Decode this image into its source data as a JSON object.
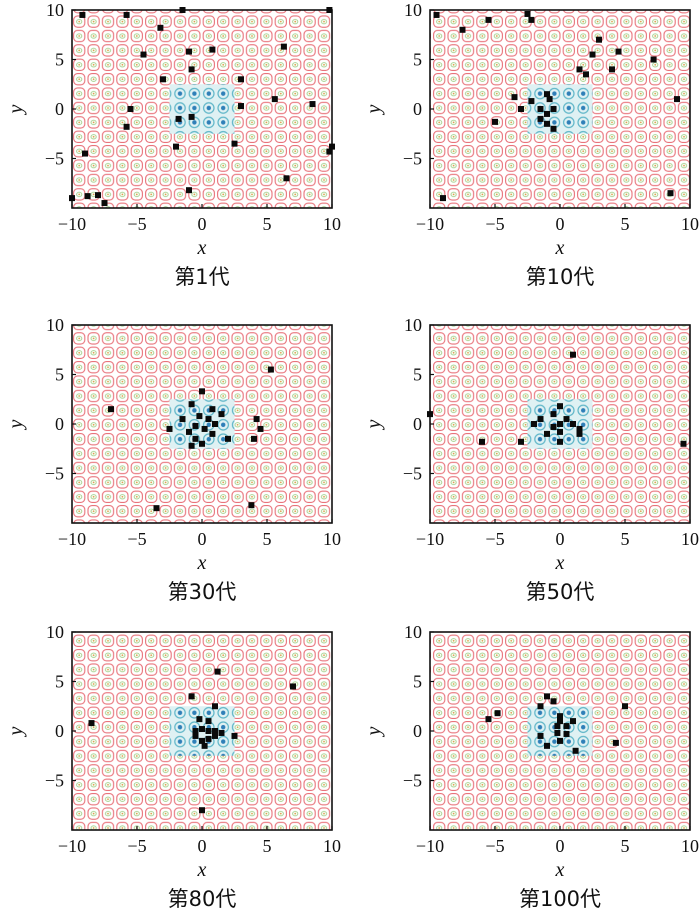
{
  "chart_data": [
    {
      "type": "scatter",
      "caption": "第1代",
      "xlabel": "x",
      "ylabel": "y",
      "xlim": [
        -10,
        10
      ],
      "ylim": [
        -10,
        10
      ],
      "xticks": [
        "−10",
        "−5",
        "0",
        "5",
        "10"
      ],
      "yticks": [
        "10",
        "5",
        "0",
        "−5"
      ],
      "background": "contour",
      "points": [
        [
          -9.2,
          9.5
        ],
        [
          -5.8,
          9.5
        ],
        [
          -3.2,
          8.2
        ],
        [
          -1.5,
          10
        ],
        [
          -4.5,
          5.5
        ],
        [
          -1,
          5.8
        ],
        [
          0.8,
          6
        ],
        [
          -0.8,
          4
        ],
        [
          -3,
          3
        ],
        [
          -1.8,
          -1
        ],
        [
          -0.8,
          -0.8
        ],
        [
          -5.5,
          0
        ],
        [
          -5.8,
          -1.8
        ],
        [
          -2,
          -3.8
        ],
        [
          2.5,
          -3.5
        ],
        [
          -9,
          -4.5
        ],
        [
          -1,
          -8.2
        ],
        [
          6.5,
          -7
        ],
        [
          9.8,
          10
        ],
        [
          6.3,
          6.3
        ],
        [
          3,
          3
        ],
        [
          3,
          0.3
        ],
        [
          5.6,
          1
        ],
        [
          8.5,
          0.5
        ],
        [
          9.8,
          -4.3
        ],
        [
          10,
          -3.8
        ],
        [
          -10,
          -9
        ],
        [
          -8.8,
          -8.8
        ],
        [
          -8,
          -8.7
        ],
        [
          -7.5,
          -9.5
        ]
      ]
    },
    {
      "type": "scatter",
      "caption": "第10代",
      "xlabel": "x",
      "ylabel": "y",
      "xlim": [
        -10,
        10
      ],
      "ylim": [
        -10,
        10
      ],
      "xticks": [
        "−10",
        "−5",
        "0",
        "5",
        "10"
      ],
      "yticks": [
        "10",
        "5",
        "0",
        "−5"
      ],
      "background": "contour",
      "points": [
        [
          -9.5,
          9.5
        ],
        [
          -7.5,
          8
        ],
        [
          -5.5,
          9
        ],
        [
          -2.5,
          9.6
        ],
        [
          -2.2,
          9
        ],
        [
          3,
          7
        ],
        [
          2.5,
          5.5
        ],
        [
          1.5,
          4
        ],
        [
          2,
          3.5
        ],
        [
          4.5,
          5.8
        ],
        [
          7.2,
          5
        ],
        [
          4,
          4
        ],
        [
          -2.2,
          0.8
        ],
        [
          -3.5,
          1.2
        ],
        [
          -3,
          0
        ],
        [
          -1,
          1.5
        ],
        [
          -0.8,
          1
        ],
        [
          -1.5,
          0
        ],
        [
          -1,
          -0.5
        ],
        [
          -1.5,
          -1
        ],
        [
          -1,
          -1.5
        ],
        [
          -0.5,
          -2
        ],
        [
          -0.5,
          0
        ],
        [
          -5,
          -1.3
        ],
        [
          9,
          1
        ],
        [
          8.5,
          -8.5
        ],
        [
          -9,
          -9
        ]
      ]
    },
    {
      "type": "scatter",
      "caption": "第30代",
      "xlabel": "x",
      "ylabel": "y",
      "xlim": [
        -10,
        10
      ],
      "ylim": [
        -10,
        10
      ],
      "xticks": [
        "−10",
        "−5",
        "0",
        "5",
        "10"
      ],
      "yticks": [
        "10",
        "5",
        "0",
        "−5"
      ],
      "background": "contour",
      "points": [
        [
          -7,
          1.5
        ],
        [
          0,
          3.3
        ],
        [
          -0.8,
          2
        ],
        [
          0.8,
          1.5
        ],
        [
          -1.5,
          0.5
        ],
        [
          -0.2,
          0.8
        ],
        [
          0.5,
          0.5
        ],
        [
          1,
          0
        ],
        [
          -0.5,
          -0.2
        ],
        [
          0.2,
          -0.5
        ],
        [
          -1,
          -0.8
        ],
        [
          0.8,
          -1
        ],
        [
          -0.5,
          -1.5
        ],
        [
          0,
          -2
        ],
        [
          -0.8,
          -2.2
        ],
        [
          2,
          -1.5
        ],
        [
          4.5,
          -0.5
        ],
        [
          4.2,
          0.5
        ],
        [
          4,
          -1.5
        ],
        [
          5.3,
          5.5
        ],
        [
          -3.5,
          -8.5
        ],
        [
          3.8,
          -8.2
        ],
        [
          -2.5,
          -0.5
        ],
        [
          1.5,
          1
        ]
      ]
    },
    {
      "type": "scatter",
      "caption": "第50代",
      "xlabel": "x",
      "ylabel": "y",
      "xlim": [
        -10,
        10
      ],
      "ylim": [
        -10,
        10
      ],
      "xticks": [
        "−10",
        "−5",
        "0",
        "5",
        "10"
      ],
      "yticks": [
        "10",
        "5",
        "0",
        "−5"
      ],
      "background": "contour",
      "points": [
        [
          -10,
          1
        ],
        [
          1,
          7
        ],
        [
          0,
          1.8
        ],
        [
          -0.5,
          1
        ],
        [
          -1.5,
          0.5
        ],
        [
          0.5,
          0.5
        ],
        [
          -2,
          0
        ],
        [
          0,
          0
        ],
        [
          1,
          0
        ],
        [
          1.5,
          -0.5
        ],
        [
          0,
          -0.8
        ],
        [
          -0.5,
          -0.3
        ],
        [
          -1,
          -1
        ],
        [
          1.5,
          -1
        ],
        [
          0,
          -1.8
        ],
        [
          -3,
          -1.8
        ],
        [
          -6,
          -1.8
        ],
        [
          9.5,
          -2
        ]
      ]
    },
    {
      "type": "scatter",
      "caption": "第80代",
      "xlabel": "x",
      "ylabel": "y",
      "xlim": [
        -10,
        10
      ],
      "ylim": [
        -10,
        10
      ],
      "xticks": [
        "−10",
        "−5",
        "0",
        "5",
        "10"
      ],
      "yticks": [
        "10",
        "5",
        "0",
        "−5"
      ],
      "background": "contour",
      "points": [
        [
          -8.5,
          0.8
        ],
        [
          1.2,
          6
        ],
        [
          7,
          4.5
        ],
        [
          -0.8,
          3.5
        ],
        [
          1,
          2.5
        ],
        [
          -0.2,
          1.2
        ],
        [
          0.5,
          1
        ],
        [
          -0.5,
          0
        ],
        [
          0,
          0.2
        ],
        [
          0.5,
          0
        ],
        [
          1,
          0
        ],
        [
          -0.5,
          -0.5
        ],
        [
          0,
          -1
        ],
        [
          0.5,
          -0.8
        ],
        [
          1,
          -0.5
        ],
        [
          1.5,
          -0.2
        ],
        [
          2.5,
          -0.5
        ],
        [
          0.2,
          -1.5
        ],
        [
          0,
          -8
        ]
      ]
    },
    {
      "type": "scatter",
      "caption": "第100代",
      "xlabel": "x",
      "ylabel": "y",
      "xlim": [
        -10,
        10
      ],
      "ylim": [
        -10,
        10
      ],
      "xticks": [
        "−10",
        "−5",
        "0",
        "5",
        "10"
      ],
      "yticks": [
        "10",
        "5",
        "0",
        "−5"
      ],
      "background": "contour",
      "points": [
        [
          -5.5,
          1.2
        ],
        [
          -4.8,
          1.8
        ],
        [
          -1.5,
          2.5
        ],
        [
          -1,
          3.5
        ],
        [
          -0.5,
          3
        ],
        [
          0,
          1.5
        ],
        [
          0,
          1
        ],
        [
          -0.2,
          0.5
        ],
        [
          0.5,
          0.5
        ],
        [
          1,
          1
        ],
        [
          -1.5,
          -0.5
        ],
        [
          -0.2,
          -0.2
        ],
        [
          0.5,
          -0.3
        ],
        [
          0,
          -1
        ],
        [
          -1,
          -1.5
        ],
        [
          1.2,
          -2
        ],
        [
          4.3,
          -1.2
        ],
        [
          5,
          2.5
        ]
      ]
    }
  ]
}
